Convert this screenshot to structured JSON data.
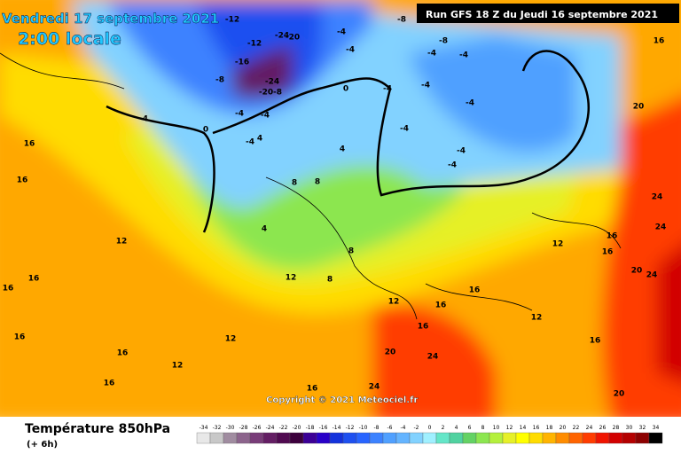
{
  "header": {
    "date": "Vendredi 17 septembre 2021",
    "time": "2:00 locale",
    "run": "Run GFS 18 Z du Jeudi 16 septembre 2021"
  },
  "copyright": "Copyright © 2021 Meteociel.fr",
  "legend": {
    "title": "Température 850hPa",
    "lead": "(+ 6h)",
    "scale": [
      {
        "value": -34,
        "color": "#e8e8e8"
      },
      {
        "value": -32,
        "color": "#c8c8c8"
      },
      {
        "value": -30,
        "color": "#a08ca0"
      },
      {
        "value": -28,
        "color": "#8c648c"
      },
      {
        "value": -26,
        "color": "#783c78"
      },
      {
        "value": -24,
        "color": "#641e64"
      },
      {
        "value": -22,
        "color": "#500a50"
      },
      {
        "value": -20,
        "color": "#3c003c"
      },
      {
        "value": -18,
        "color": "#3c0096"
      },
      {
        "value": -16,
        "color": "#2800c8"
      },
      {
        "value": -14,
        "color": "#1432dc"
      },
      {
        "value": -12,
        "color": "#1e50f0"
      },
      {
        "value": -10,
        "color": "#2864ff"
      },
      {
        "value": -8,
        "color": "#3c82ff"
      },
      {
        "value": -6,
        "color": "#50a0ff"
      },
      {
        "value": -4,
        "color": "#64b4ff"
      },
      {
        "value": -2,
        "color": "#82d2ff"
      },
      {
        "value": 0,
        "color": "#a0f0ff"
      },
      {
        "value": 2,
        "color": "#64e6c8"
      },
      {
        "value": 4,
        "color": "#50d2a0"
      },
      {
        "value": 6,
        "color": "#64d264"
      },
      {
        "value": 8,
        "color": "#8ce650"
      },
      {
        "value": 10,
        "color": "#b4f03c"
      },
      {
        "value": 12,
        "color": "#e6f028"
      },
      {
        "value": 14,
        "color": "#ffff00"
      },
      {
        "value": 16,
        "color": "#ffdc00"
      },
      {
        "value": 18,
        "color": "#ffb400"
      },
      {
        "value": 20,
        "color": "#ff8c00"
      },
      {
        "value": 22,
        "color": "#ff6400"
      },
      {
        "value": 24,
        "color": "#ff3c00"
      },
      {
        "value": 26,
        "color": "#f01400"
      },
      {
        "value": 28,
        "color": "#d20000"
      },
      {
        "value": 30,
        "color": "#b40000"
      },
      {
        "value": 32,
        "color": "#8c0000"
      },
      {
        "value": 34,
        "color": "#000000"
      }
    ]
  },
  "map_labels": [
    "-12",
    "-24",
    "-20",
    "-12",
    "-16",
    "-8",
    "-24",
    "-20",
    "-8",
    "-4",
    "-4",
    "0",
    "-4",
    "-4",
    "4",
    "-4",
    "-4",
    "-8",
    "-8",
    "-4",
    "-4",
    "0",
    "-4",
    "-4",
    "-4",
    "-4",
    "-4",
    "-4",
    "4",
    "8",
    "8",
    "4",
    "8",
    "16",
    "16",
    "12",
    "12",
    "8",
    "12",
    "16",
    "12",
    "12",
    "16",
    "16",
    "20",
    "24",
    "24",
    "12",
    "12",
    "16",
    "16",
    "16",
    "16",
    "20",
    "24",
    "24",
    "20",
    "24",
    "20",
    "16",
    "16",
    "16",
    "16",
    "16",
    "16"
  ]
}
